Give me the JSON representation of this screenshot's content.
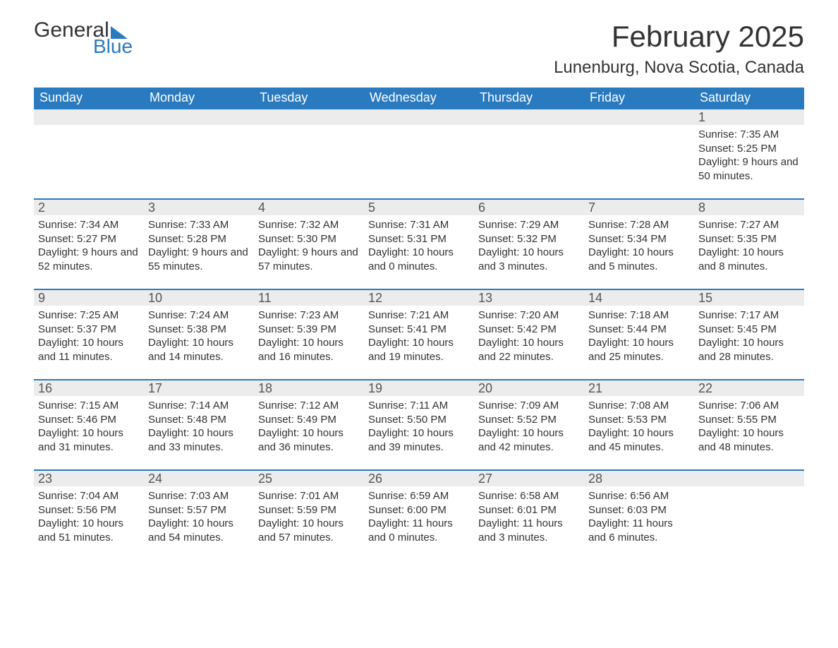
{
  "logo": {
    "word1": "General",
    "word2": "Blue"
  },
  "title": "February 2025",
  "location": "Lunenburg, Nova Scotia, Canada",
  "colors": {
    "header_bg": "#2a7ac0",
    "header_text": "#ffffff",
    "daynum_bg": "#ececec",
    "rule": "#2a7ac0",
    "text": "#333333",
    "background": "#ffffff"
  },
  "weekdays": [
    "Sunday",
    "Monday",
    "Tuesday",
    "Wednesday",
    "Thursday",
    "Friday",
    "Saturday"
  ],
  "weeks": [
    [
      null,
      null,
      null,
      null,
      null,
      null,
      {
        "n": "1",
        "sunrise": "7:35 AM",
        "sunset": "5:25 PM",
        "daylight": "9 hours and 50 minutes."
      }
    ],
    [
      {
        "n": "2",
        "sunrise": "7:34 AM",
        "sunset": "5:27 PM",
        "daylight": "9 hours and 52 minutes."
      },
      {
        "n": "3",
        "sunrise": "7:33 AM",
        "sunset": "5:28 PM",
        "daylight": "9 hours and 55 minutes."
      },
      {
        "n": "4",
        "sunrise": "7:32 AM",
        "sunset": "5:30 PM",
        "daylight": "9 hours and 57 minutes."
      },
      {
        "n": "5",
        "sunrise": "7:31 AM",
        "sunset": "5:31 PM",
        "daylight": "10 hours and 0 minutes."
      },
      {
        "n": "6",
        "sunrise": "7:29 AM",
        "sunset": "5:32 PM",
        "daylight": "10 hours and 3 minutes."
      },
      {
        "n": "7",
        "sunrise": "7:28 AM",
        "sunset": "5:34 PM",
        "daylight": "10 hours and 5 minutes."
      },
      {
        "n": "8",
        "sunrise": "7:27 AM",
        "sunset": "5:35 PM",
        "daylight": "10 hours and 8 minutes."
      }
    ],
    [
      {
        "n": "9",
        "sunrise": "7:25 AM",
        "sunset": "5:37 PM",
        "daylight": "10 hours and 11 minutes."
      },
      {
        "n": "10",
        "sunrise": "7:24 AM",
        "sunset": "5:38 PM",
        "daylight": "10 hours and 14 minutes."
      },
      {
        "n": "11",
        "sunrise": "7:23 AM",
        "sunset": "5:39 PM",
        "daylight": "10 hours and 16 minutes."
      },
      {
        "n": "12",
        "sunrise": "7:21 AM",
        "sunset": "5:41 PM",
        "daylight": "10 hours and 19 minutes."
      },
      {
        "n": "13",
        "sunrise": "7:20 AM",
        "sunset": "5:42 PM",
        "daylight": "10 hours and 22 minutes."
      },
      {
        "n": "14",
        "sunrise": "7:18 AM",
        "sunset": "5:44 PM",
        "daylight": "10 hours and 25 minutes."
      },
      {
        "n": "15",
        "sunrise": "7:17 AM",
        "sunset": "5:45 PM",
        "daylight": "10 hours and 28 minutes."
      }
    ],
    [
      {
        "n": "16",
        "sunrise": "7:15 AM",
        "sunset": "5:46 PM",
        "daylight": "10 hours and 31 minutes."
      },
      {
        "n": "17",
        "sunrise": "7:14 AM",
        "sunset": "5:48 PM",
        "daylight": "10 hours and 33 minutes."
      },
      {
        "n": "18",
        "sunrise": "7:12 AM",
        "sunset": "5:49 PM",
        "daylight": "10 hours and 36 minutes."
      },
      {
        "n": "19",
        "sunrise": "7:11 AM",
        "sunset": "5:50 PM",
        "daylight": "10 hours and 39 minutes."
      },
      {
        "n": "20",
        "sunrise": "7:09 AM",
        "sunset": "5:52 PM",
        "daylight": "10 hours and 42 minutes."
      },
      {
        "n": "21",
        "sunrise": "7:08 AM",
        "sunset": "5:53 PM",
        "daylight": "10 hours and 45 minutes."
      },
      {
        "n": "22",
        "sunrise": "7:06 AM",
        "sunset": "5:55 PM",
        "daylight": "10 hours and 48 minutes."
      }
    ],
    [
      {
        "n": "23",
        "sunrise": "7:04 AM",
        "sunset": "5:56 PM",
        "daylight": "10 hours and 51 minutes."
      },
      {
        "n": "24",
        "sunrise": "7:03 AM",
        "sunset": "5:57 PM",
        "daylight": "10 hours and 54 minutes."
      },
      {
        "n": "25",
        "sunrise": "7:01 AM",
        "sunset": "5:59 PM",
        "daylight": "10 hours and 57 minutes."
      },
      {
        "n": "26",
        "sunrise": "6:59 AM",
        "sunset": "6:00 PM",
        "daylight": "11 hours and 0 minutes."
      },
      {
        "n": "27",
        "sunrise": "6:58 AM",
        "sunset": "6:01 PM",
        "daylight": "11 hours and 3 minutes."
      },
      {
        "n": "28",
        "sunrise": "6:56 AM",
        "sunset": "6:03 PM",
        "daylight": "11 hours and 6 minutes."
      },
      null
    ]
  ],
  "labels": {
    "sunrise": "Sunrise: ",
    "sunset": "Sunset: ",
    "daylight": "Daylight: "
  }
}
